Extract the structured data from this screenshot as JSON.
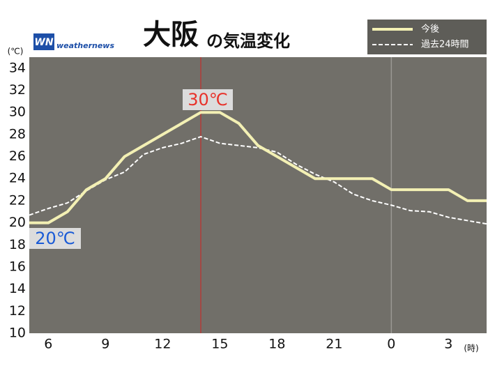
{
  "chart_data": {
    "type": "line",
    "title": "大阪",
    "subtitle": "の気温変化",
    "logo": "weathernews",
    "logo_mark": "WN",
    "ylabel": "(℃)",
    "xlabel": "(時)",
    "x": [
      5,
      6,
      7,
      8,
      9,
      10,
      11,
      12,
      13,
      14,
      15,
      16,
      17,
      18,
      19,
      20,
      21,
      22,
      23,
      24,
      25,
      26,
      27,
      28,
      29
    ],
    "series": [
      {
        "name": "今後",
        "color": "#f3f0b4",
        "dash": false,
        "values": [
          20,
          20,
          21,
          23,
          24,
          26,
          27,
          28,
          29,
          30,
          30,
          29,
          27,
          26,
          25,
          24,
          24,
          24,
          24,
          23,
          23,
          23,
          23,
          22,
          22
        ]
      },
      {
        "name": "過去24時間",
        "color": "#ffffff",
        "dash": true,
        "values": [
          20.7,
          21.3,
          21.8,
          22.9,
          23.9,
          24.6,
          26.2,
          26.8,
          27.2,
          27.8,
          27.2,
          27.0,
          26.8,
          26.4,
          25.3,
          24.4,
          23.7,
          22.6,
          22.0,
          21.6,
          21.1,
          21.0,
          20.5,
          20.2,
          19.9
        ]
      }
    ],
    "annotations": [
      {
        "text": "30℃",
        "color": "#e8322a"
      },
      {
        "text": "20℃",
        "color": "#1a5bd6"
      }
    ],
    "current_time": 14,
    "xlim": [
      5,
      29
    ],
    "xticks": [
      6,
      9,
      12,
      15,
      18,
      21,
      {
        "value": 24,
        "label": "0"
      },
      {
        "value": 27,
        "label": "3"
      }
    ],
    "ylim": [
      10,
      35
    ],
    "yticks": [
      10,
      12,
      14,
      16,
      18,
      20,
      22,
      24,
      26,
      28,
      30,
      32,
      34
    ],
    "grid": false
  }
}
